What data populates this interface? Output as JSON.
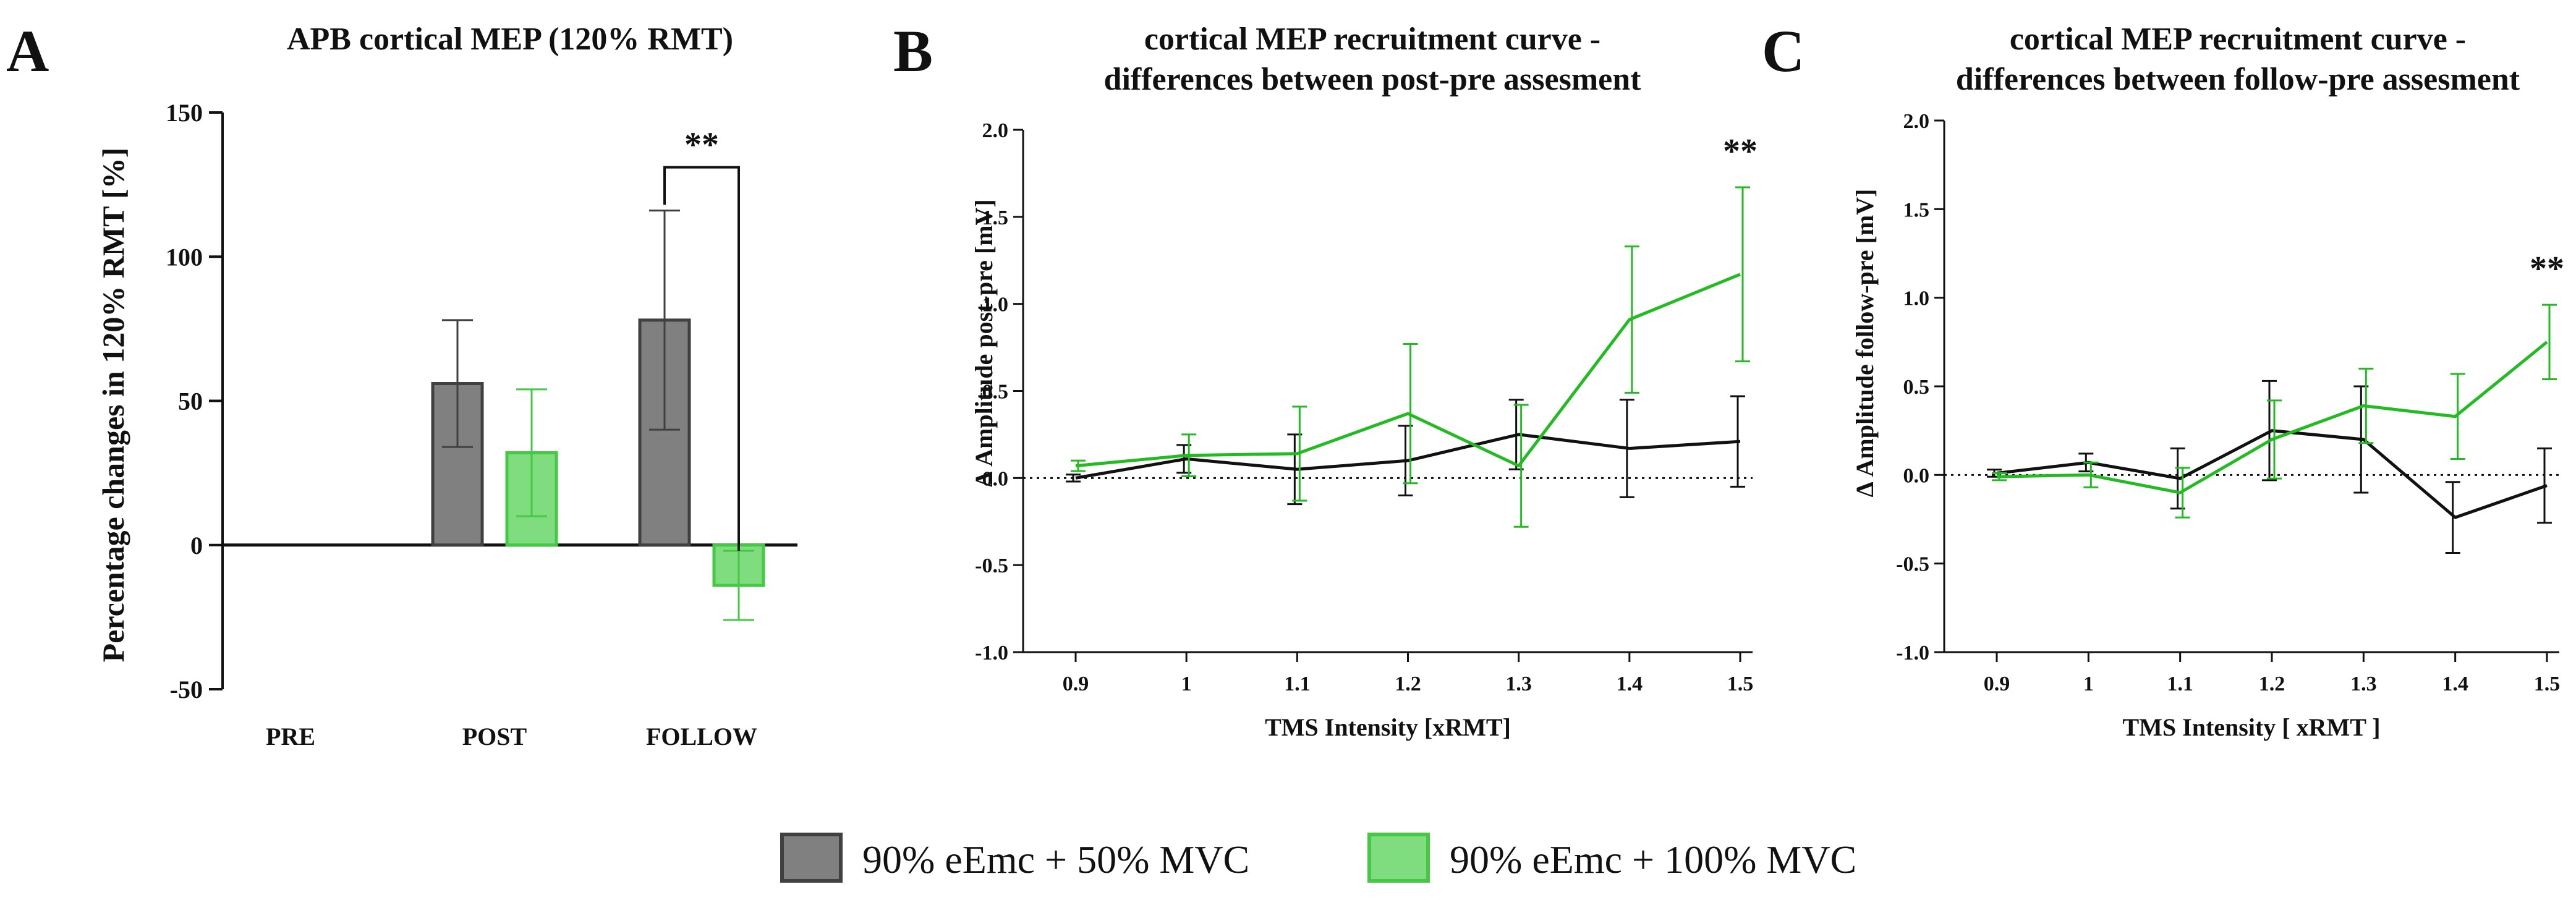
{
  "colors": {
    "group1": "#808080",
    "group1_edge": "#404040",
    "group1_line": "#111111",
    "group2": "#7fdc7f",
    "group2_edge": "#45c945",
    "group2_line": "#22bb22"
  },
  "legend": {
    "items": [
      {
        "label": "90% eEmc + 50% MVC",
        "color": "#808080",
        "edge": "#404040"
      },
      {
        "label": "90% eEmc + 100% MVC",
        "color": "#7fdc7f",
        "edge": "#45c945"
      }
    ]
  },
  "chart_data": [
    {
      "panel": "A",
      "type": "bar",
      "title": "APB cortical MEP (120% RMT)",
      "ylabel": "Percentage changes in 120% RMT [%]",
      "xlabel": "",
      "ylim": [
        -50,
        150
      ],
      "yticks": [
        "150",
        "100",
        "50",
        "0",
        "-50"
      ],
      "categories": [
        "PRE",
        "POST",
        "FOLLOW"
      ],
      "series": [
        {
          "name": "90% eEmc + 50% MVC",
          "values": [
            null,
            56,
            78
          ],
          "errors": [
            null,
            22,
            38
          ]
        },
        {
          "name": "90% eEmc + 100% MVC",
          "values": [
            null,
            32,
            -14
          ],
          "errors": [
            null,
            22,
            12
          ]
        }
      ],
      "annotation": {
        "text": "**",
        "category": "FOLLOW"
      }
    },
    {
      "panel": "B",
      "type": "line",
      "title": [
        "cortical MEP recruitment curve -",
        "differences between post-pre assesment"
      ],
      "xlabel": "TMS Intensity [xRMT]",
      "ylabel": "Δ Amplitude post-pre [mV]",
      "x": [
        "0.9",
        "1",
        "1.1",
        "1.2",
        "1.3",
        "1.4",
        "1.5"
      ],
      "ylim": [
        -1.0,
        2.0
      ],
      "yticks": [
        "2.0",
        "1.5",
        "1.0",
        "0.5",
        "0.0",
        "-0.5",
        "-1.0"
      ],
      "series": [
        {
          "name": "90% eEmc + 50% MVC",
          "values": [
            0.0,
            0.11,
            0.05,
            0.1,
            0.25,
            0.17,
            0.21
          ],
          "errors": [
            0.02,
            0.08,
            0.2,
            0.2,
            0.2,
            0.28,
            0.26
          ]
        },
        {
          "name": "90% eEmc + 100% MVC",
          "values": [
            0.07,
            0.13,
            0.14,
            0.37,
            0.07,
            0.91,
            1.17
          ],
          "errors": [
            0.03,
            0.12,
            0.27,
            0.4,
            0.35,
            0.42,
            0.5
          ]
        }
      ],
      "annotation": {
        "text": "**",
        "x": "1.5"
      }
    },
    {
      "panel": "C",
      "type": "line",
      "title": [
        "cortical MEP recruitment curve -",
        "differences between follow-pre assesment"
      ],
      "xlabel": "TMS Intensity [ xRMT ]",
      "ylabel": "Δ Amplitude follow-pre [mV]",
      "x": [
        "0.9",
        "1",
        "1.1",
        "1.2",
        "1.3",
        "1.4",
        "1.5"
      ],
      "ylim": [
        -1.0,
        2.0
      ],
      "yticks": [
        "2.0",
        "1.5",
        "1.0",
        "0.5",
        "0.0",
        "-0.5",
        "-1.0"
      ],
      "series": [
        {
          "name": "90% eEmc + 50% MVC",
          "values": [
            0.01,
            0.07,
            -0.02,
            0.25,
            0.2,
            -0.24,
            -0.06
          ],
          "errors": [
            0.02,
            0.05,
            0.17,
            0.28,
            0.3,
            0.2,
            0.21
          ]
        },
        {
          "name": "90% eEmc + 100% MVC",
          "values": [
            -0.01,
            0.0,
            -0.1,
            0.2,
            0.39,
            0.33,
            0.75
          ],
          "errors": [
            0.02,
            0.07,
            0.14,
            0.22,
            0.21,
            0.24,
            0.21
          ]
        }
      ],
      "annotation": {
        "text": "**",
        "x": "1.5"
      }
    }
  ]
}
